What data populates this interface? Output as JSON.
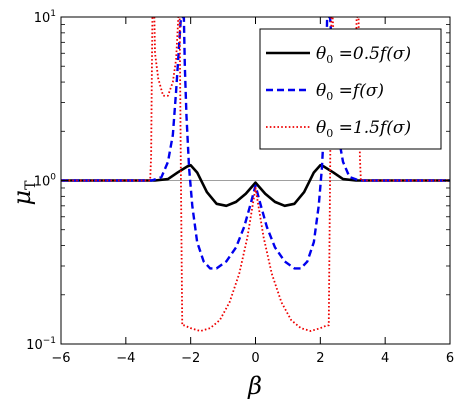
{
  "chart_data": {
    "type": "line",
    "title": "",
    "xlabel": "β",
    "ylabel": "μ",
    "ylabel_subscript": "T",
    "xlim": [
      -6,
      6
    ],
    "ylim": [
      0.1,
      10
    ],
    "yscale": "log",
    "xticks": [
      -6,
      -4,
      -2,
      0,
      2,
      4,
      6
    ],
    "xtick_labels": [
      "−6",
      "−4",
      "−2",
      "0",
      "2",
      "4",
      "6"
    ],
    "yticks": [
      {
        "value": 0.1,
        "base": "10",
        "exp": "−1"
      },
      {
        "value": 1,
        "base": "10",
        "exp": "0"
      },
      {
        "value": 10,
        "base": "10",
        "exp": "1"
      }
    ],
    "reference_line": {
      "y": 1,
      "color": "#a0a0a0"
    },
    "legend": {
      "position": "top-right"
    },
    "series": [
      {
        "name": "θ₀ =0.5f(σ)",
        "legend_parts": {
          "theta": "θ",
          "sub": "0",
          "rest": " =0.5f(σ)"
        },
        "color": "#000000",
        "dash": "solid",
        "points": [
          [
            -6,
            1
          ],
          [
            -3.1,
            1
          ],
          [
            -2.7,
            1.02
          ],
          [
            -2.4,
            1.12
          ],
          [
            -2.1,
            1.22
          ],
          [
            -2.0,
            1.24
          ],
          [
            -1.8,
            1.12
          ],
          [
            -1.5,
            0.85
          ],
          [
            -1.2,
            0.72
          ],
          [
            -0.9,
            0.7
          ],
          [
            -0.6,
            0.74
          ],
          [
            -0.3,
            0.83
          ],
          [
            0,
            0.97
          ],
          [
            0.3,
            0.83
          ],
          [
            0.6,
            0.74
          ],
          [
            0.9,
            0.7
          ],
          [
            1.2,
            0.72
          ],
          [
            1.5,
            0.85
          ],
          [
            1.8,
            1.12
          ],
          [
            2.0,
            1.24
          ],
          [
            2.1,
            1.22
          ],
          [
            2.4,
            1.12
          ],
          [
            2.7,
            1.02
          ],
          [
            3.1,
            1
          ],
          [
            6,
            1
          ]
        ]
      },
      {
        "name": "θ₀ =f(σ)",
        "legend_parts": {
          "theta": "θ",
          "sub": "0",
          "rest": " =f(σ)"
        },
        "color": "#0000ee",
        "dash": "dashed",
        "points": [
          [
            -6,
            1
          ],
          [
            -3.2,
            1
          ],
          [
            -2.9,
            1.05
          ],
          [
            -2.7,
            1.3
          ],
          [
            -2.55,
            1.9
          ],
          [
            -2.45,
            3.5
          ],
          [
            -2.35,
            7
          ],
          [
            -2.3,
            10
          ],
          [
            -2.21,
            10
          ],
          [
            -2.18,
            5
          ],
          [
            -2.13,
            2.5
          ],
          [
            -2.05,
            1.2
          ],
          [
            -1.95,
            0.7
          ],
          [
            -1.8,
            0.42
          ],
          [
            -1.6,
            0.32
          ],
          [
            -1.4,
            0.29
          ],
          [
            -1.2,
            0.29
          ],
          [
            -0.9,
            0.32
          ],
          [
            -0.6,
            0.39
          ],
          [
            -0.35,
            0.52
          ],
          [
            -0.15,
            0.72
          ],
          [
            0,
            0.93
          ],
          [
            0.15,
            0.72
          ],
          [
            0.35,
            0.52
          ],
          [
            0.6,
            0.39
          ],
          [
            0.9,
            0.32
          ],
          [
            1.2,
            0.29
          ],
          [
            1.4,
            0.29
          ],
          [
            1.6,
            0.32
          ],
          [
            1.8,
            0.42
          ],
          [
            1.95,
            0.7
          ],
          [
            2.05,
            1.2
          ],
          [
            2.13,
            2.5
          ],
          [
            2.18,
            5
          ],
          [
            2.21,
            10
          ],
          [
            2.3,
            10
          ],
          [
            2.35,
            7
          ],
          [
            2.45,
            3.5
          ],
          [
            2.55,
            1.9
          ],
          [
            2.7,
            1.3
          ],
          [
            2.9,
            1.05
          ],
          [
            3.2,
            1
          ],
          [
            6,
            1
          ]
        ]
      },
      {
        "name": "θ₀ =1.5f(σ)",
        "legend_parts": {
          "theta": "θ",
          "sub": "0",
          "rest": " =1.5f(σ)"
        },
        "color": "#ee0000",
        "dash": "dotted",
        "points": [
          [
            -6,
            1
          ],
          [
            -3.25,
            1
          ],
          [
            -3.22,
            1.4
          ],
          [
            -3.2,
            4
          ],
          [
            -3.18,
            10
          ],
          [
            -3.12,
            10
          ],
          [
            -3.1,
            6
          ],
          [
            -3.0,
            4.2
          ],
          [
            -2.85,
            3.3
          ],
          [
            -2.7,
            3.3
          ],
          [
            -2.55,
            4.0
          ],
          [
            -2.45,
            5.5
          ],
          [
            -2.38,
            10
          ],
          [
            -2.34,
            10
          ],
          [
            -2.3,
            1
          ],
          [
            -2.26,
            0.13
          ],
          [
            -2.2,
            0.13
          ],
          [
            -2.0,
            0.125
          ],
          [
            -1.7,
            0.12
          ],
          [
            -1.4,
            0.125
          ],
          [
            -1.1,
            0.14
          ],
          [
            -0.8,
            0.18
          ],
          [
            -0.5,
            0.27
          ],
          [
            -0.25,
            0.45
          ],
          [
            0,
            0.9
          ],
          [
            0.25,
            0.45
          ],
          [
            0.5,
            0.27
          ],
          [
            0.8,
            0.18
          ],
          [
            1.1,
            0.14
          ],
          [
            1.4,
            0.125
          ],
          [
            1.7,
            0.12
          ],
          [
            2.0,
            0.125
          ],
          [
            2.2,
            0.13
          ],
          [
            2.26,
            0.13
          ],
          [
            2.3,
            1
          ],
          [
            2.34,
            10
          ],
          [
            2.38,
            10
          ],
          [
            2.45,
            5.5
          ],
          [
            2.55,
            4.0
          ],
          [
            2.7,
            3.3
          ],
          [
            2.85,
            3.3
          ],
          [
            3.0,
            4.2
          ],
          [
            3.1,
            6
          ],
          [
            3.12,
            10
          ],
          [
            3.18,
            10
          ],
          [
            3.2,
            4
          ],
          [
            3.22,
            1.4
          ],
          [
            3.25,
            1
          ],
          [
            6,
            1
          ]
        ]
      }
    ]
  }
}
